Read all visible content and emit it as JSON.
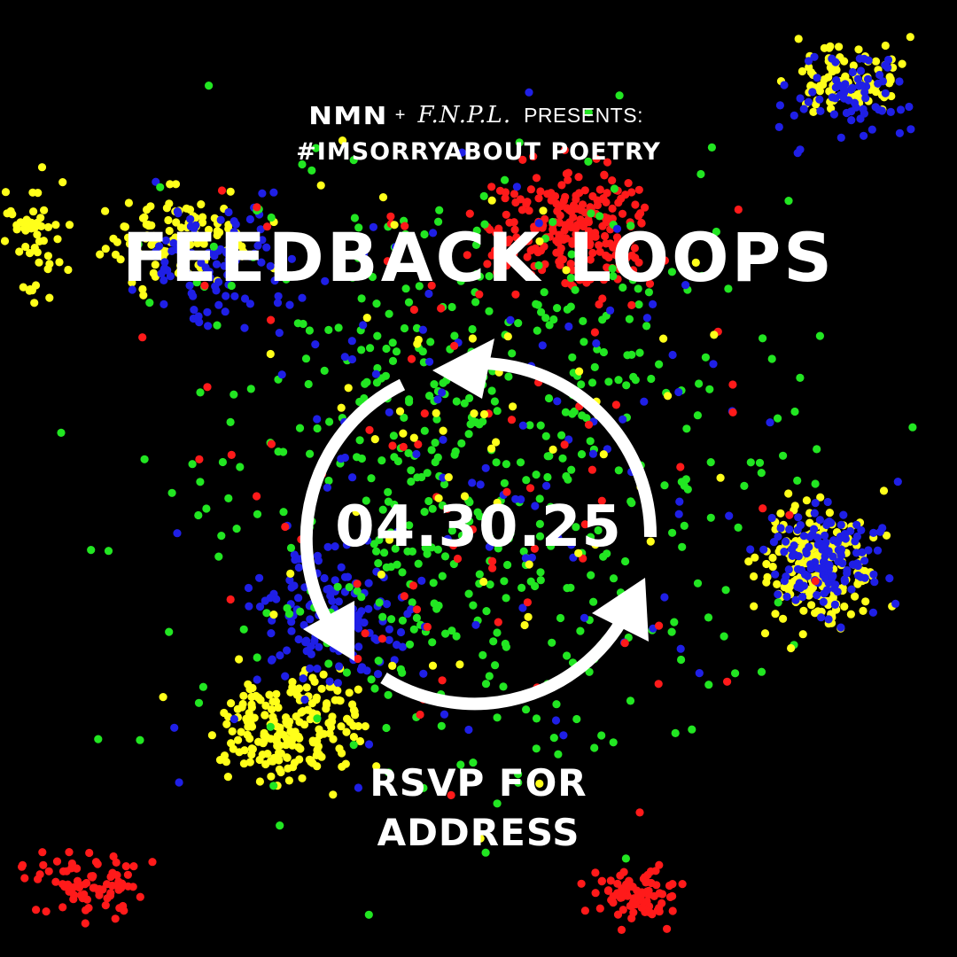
{
  "hosts": {
    "primary": "NMN",
    "plus": "+",
    "secondary": "F.N.P.L.",
    "presents": "PRESENTS:"
  },
  "series": "#IMSORRYABOUT POETRY",
  "title": "FEEDBACK LOOPS",
  "date": "04.30.25",
  "rsvp": {
    "line1": "RSVP FOR",
    "line2": "ADDRESS"
  },
  "icon": "cycle-arrows-icon",
  "colors": {
    "background": "#000000",
    "text": "#ffffff",
    "dot_red": "#ff1a1a",
    "dot_green": "#22e622",
    "dot_blue": "#1f1fe6",
    "dot_yellow": "#ffff1a"
  }
}
